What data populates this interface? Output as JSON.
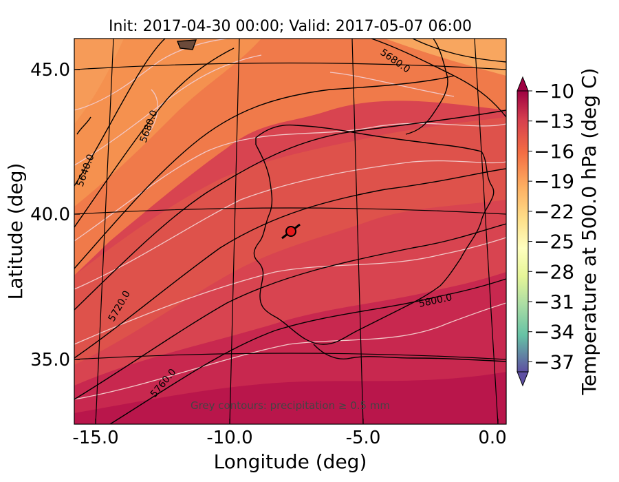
{
  "title": "Init: 2017-04-30 00:00; Valid: 2017-05-07 06:00",
  "x_axis": {
    "label": "Longitude (deg)",
    "ticks": [
      "-15.0",
      "-10.0",
      "-5.0",
      "0.0"
    ]
  },
  "y_axis": {
    "label": "Latitude (deg)",
    "ticks": [
      "45.0",
      "40.0",
      "35.0"
    ]
  },
  "colorbar": {
    "label": "Temperature at 500.0 hPa (deg C)",
    "ticks": [
      "−10",
      "−13",
      "−16",
      "−19",
      "−22",
      "−25",
      "−28",
      "−31",
      "−34",
      "−37"
    ],
    "range": [
      -38,
      -10
    ],
    "extend": "both"
  },
  "contour_labels": [
    "5640.0",
    "5680.0",
    "5680.0",
    "5720.0",
    "5760.0",
    "5800.0"
  ],
  "note": "Grey contours: precipitation ≥ 0.5 mm",
  "marker": {
    "lon": -7.6,
    "lat": 39.3,
    "color": "#e41a1c"
  },
  "colors": {
    "warm_band_north": "#f5914f",
    "band_mid": "#ea6a45",
    "band_south": "#d84450",
    "band_far_south": "#c8284f"
  }
}
